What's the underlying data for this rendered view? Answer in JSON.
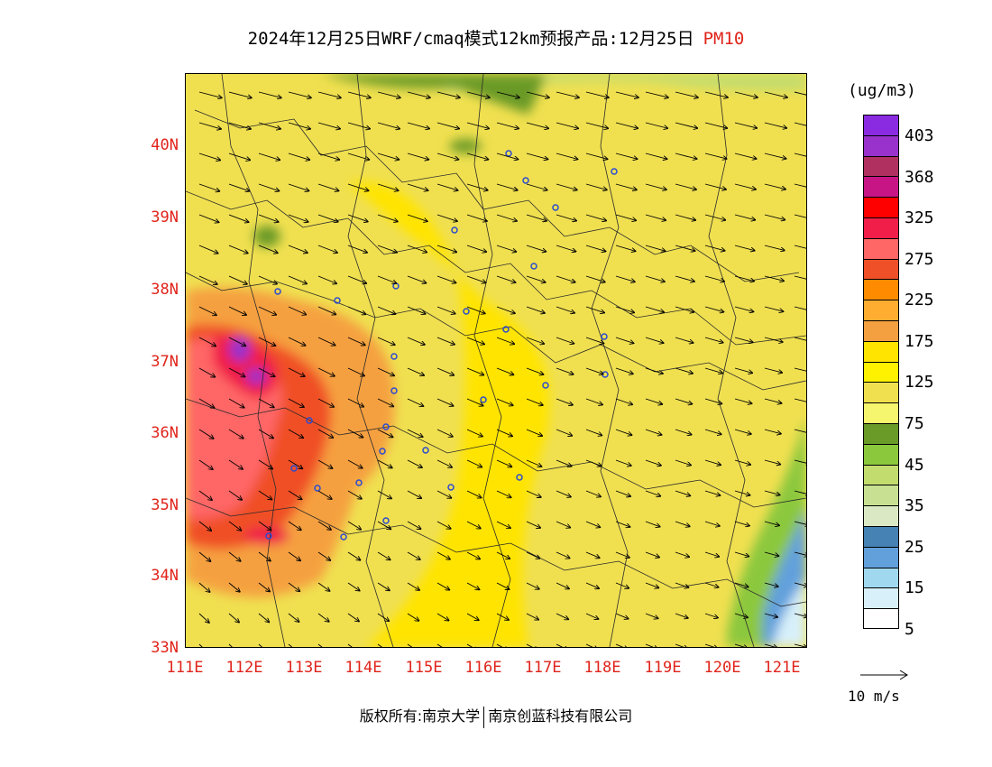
{
  "title": {
    "text": "2024年12月25日WRF/cmaq模式12km预报产品:12月25日",
    "variable": "PM10"
  },
  "map": {
    "lat_labels": [
      "40N",
      "39N",
      "38N",
      "37N",
      "36N",
      "35N",
      "34N",
      "33N"
    ],
    "lon_labels": [
      "111E",
      "112E",
      "113E",
      "114E",
      "115E",
      "116E",
      "117E",
      "118E",
      "119E",
      "120E",
      "121E"
    ],
    "dominant_field": "yellow (75-125 ug/m3)",
    "high_area": "southwest, red/purple (225-403 ug/m3)",
    "low_area": "southeast coast, blue (5-35 ug/m3)",
    "wind": "westerly to northwesterly vectors"
  },
  "colorbar": {
    "units": "(ug/m3)",
    "labels": [
      "403",
      "368",
      "325",
      "275",
      "225",
      "175",
      "125",
      "75",
      "45",
      "35",
      "25",
      "15",
      "5"
    ],
    "colors": [
      "#8a2be2",
      "#9932cc",
      "#b03060",
      "#c71585",
      "#ff0000",
      "#f01e48",
      "#ff6666",
      "#f05028",
      "#ff8c00",
      "#ffad30",
      "#f5a040",
      "#ffe400",
      "#fff200",
      "#f0e050",
      "#f5f56e",
      "#6a9a28",
      "#8cc83c",
      "#c3dc6e",
      "#c8e091",
      "#dae9c4",
      "#4682b4",
      "#62a0dc",
      "#a0d8f0",
      "#d8f0fa",
      "#ffffff"
    ]
  },
  "vector_legend": {
    "label": "10 m/s"
  },
  "copyright": {
    "left": "版权所有:南京大学",
    "right": "南京创蓝科技有限公司"
  }
}
